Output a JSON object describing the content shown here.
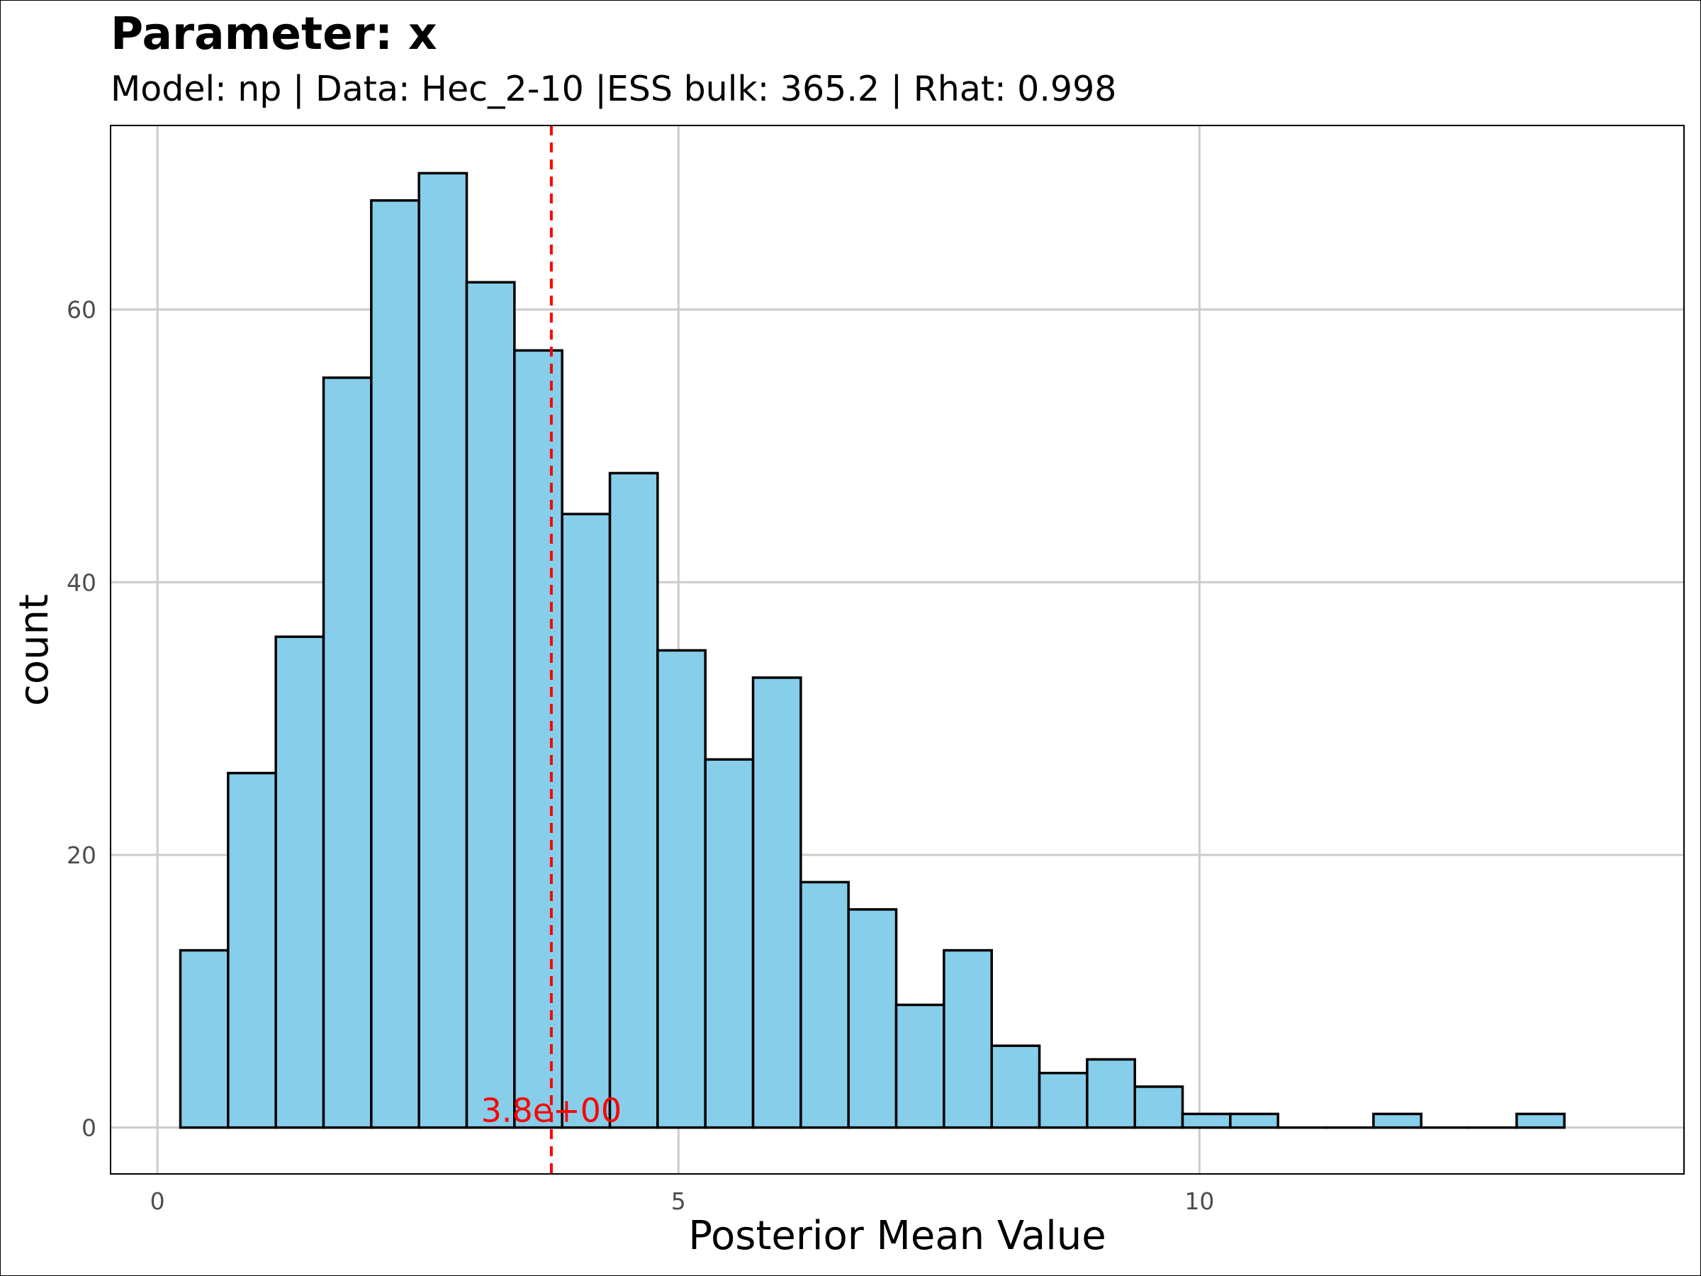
{
  "chart_data": {
    "type": "bar",
    "title": "Parameter: x",
    "subtitle": "Model: np | Data: Hec_2-10 |ESS bulk: 365.2 | Rhat: 0.998",
    "xlabel": "Posterior Mean Value",
    "ylabel": "count",
    "xlim": [
      -0.45,
      14.65
    ],
    "ylim": [
      -3.4,
      73.5
    ],
    "x_ticks": [
      {
        "value": 0,
        "label": "0"
      },
      {
        "value": 5,
        "label": "5"
      },
      {
        "value": 10,
        "label": "10"
      }
    ],
    "y_ticks": [
      {
        "value": 0,
        "label": "0"
      },
      {
        "value": 20,
        "label": "20"
      },
      {
        "value": 40,
        "label": "40"
      },
      {
        "value": 60,
        "label": "60"
      }
    ],
    "grid": true,
    "bin_width": 0.458,
    "bin_start": 0.22,
    "counts": [
      13,
      26,
      36,
      55,
      68,
      70,
      62,
      57,
      45,
      48,
      35,
      27,
      33,
      18,
      16,
      9,
      13,
      6,
      4,
      5,
      3,
      1,
      1,
      0,
      0,
      1,
      0,
      0,
      1
    ],
    "fill_color": "#87CEEB",
    "edge_color": "#000000",
    "reference_line": {
      "value": 3.78,
      "label": "3.8e+00",
      "color": "#FF0000",
      "style": "dashed"
    }
  }
}
